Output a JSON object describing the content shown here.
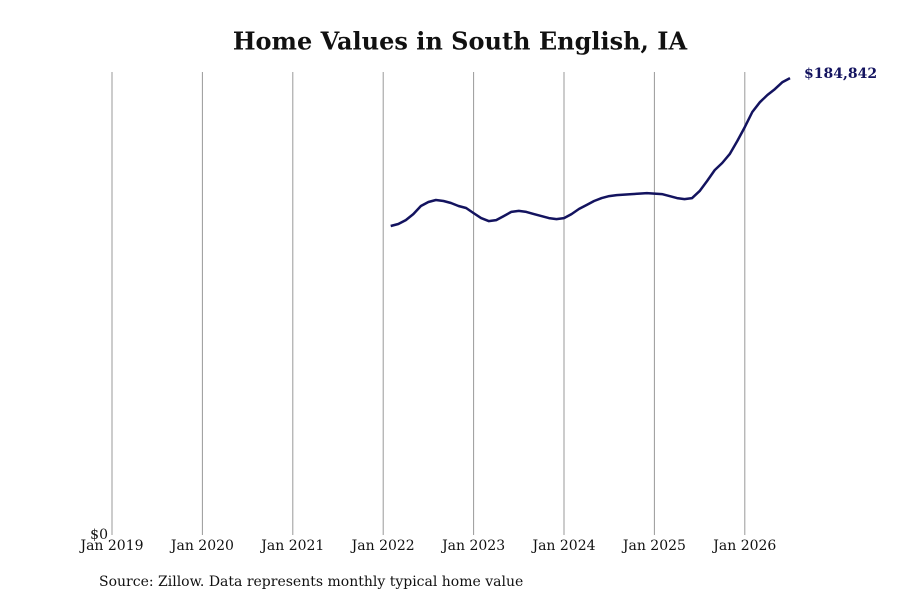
{
  "chart_data": {
    "type": "line",
    "title": "Home Values in South English, IA",
    "source": "Source: Zillow. Data represents monthly typical home value",
    "x": [
      "2022-02",
      "2022-03",
      "2022-04",
      "2022-05",
      "2022-06",
      "2022-07",
      "2022-08",
      "2022-09",
      "2022-10",
      "2022-11",
      "2022-12",
      "2023-01",
      "2023-02",
      "2023-03",
      "2023-04",
      "2023-05",
      "2023-06",
      "2023-07",
      "2023-08",
      "2023-09",
      "2023-10",
      "2023-11",
      "2023-12",
      "2024-01",
      "2024-02",
      "2024-03",
      "2024-04",
      "2024-05",
      "2024-06",
      "2024-07",
      "2024-08",
      "2024-09",
      "2024-10",
      "2024-11",
      "2024-12",
      "2025-01",
      "2025-02",
      "2025-03",
      "2025-04",
      "2025-05",
      "2025-06",
      "2025-07",
      "2025-08",
      "2025-09",
      "2025-10",
      "2025-11",
      "2025-12",
      "2026-01",
      "2026-02",
      "2026-03",
      "2026-04",
      "2026-05",
      "2026-06",
      "2026-07"
    ],
    "series": [
      {
        "name": "Home value",
        "color": "#13135f",
        "values": [
          125000,
          125800,
          127400,
          129800,
          133100,
          134700,
          135500,
          135100,
          134300,
          133100,
          132300,
          130200,
          128200,
          127000,
          127400,
          129000,
          130700,
          131100,
          130700,
          129800,
          129000,
          128200,
          127800,
          128200,
          129800,
          131900,
          133500,
          135100,
          136300,
          137100,
          137500,
          137700,
          137900,
          138100,
          138300,
          138100,
          137900,
          137100,
          136300,
          135900,
          136300,
          139100,
          143200,
          147600,
          150500,
          154100,
          159400,
          165000,
          171100,
          175100,
          178000,
          180400,
          183200,
          184842
        ],
        "value_labels": [
          null,
          null,
          null,
          null,
          null,
          null,
          null,
          null,
          null,
          null,
          null,
          null,
          null,
          null,
          null,
          null,
          null,
          null,
          null,
          null,
          null,
          null,
          null,
          null,
          null,
          null,
          null,
          null,
          null,
          null,
          null,
          null,
          null,
          null,
          null,
          null,
          null,
          null,
          null,
          null,
          null,
          null,
          null,
          null,
          null,
          null,
          null,
          null,
          null,
          null,
          null,
          null,
          null,
          "$184,842"
        ]
      }
    ],
    "xlim": [
      "2019-01",
      "2026-07"
    ],
    "xticks": [
      {
        "value": "2019-01",
        "label": "Jan 2019"
      },
      {
        "value": "2020-01",
        "label": "Jan 2020"
      },
      {
        "value": "2021-01",
        "label": "Jan 2021"
      },
      {
        "value": "2022-01",
        "label": "Jan 2022"
      },
      {
        "value": "2023-01",
        "label": "Jan 2023"
      },
      {
        "value": "2024-01",
        "label": "Jan 2024"
      },
      {
        "value": "2025-01",
        "label": "Jan 2025"
      },
      {
        "value": "2026-01",
        "label": "Jan 2026"
      }
    ],
    "ylim": [
      0,
      187300
    ],
    "yticks": [
      {
        "value": 0,
        "label": "$0"
      }
    ],
    "grid": true
  }
}
